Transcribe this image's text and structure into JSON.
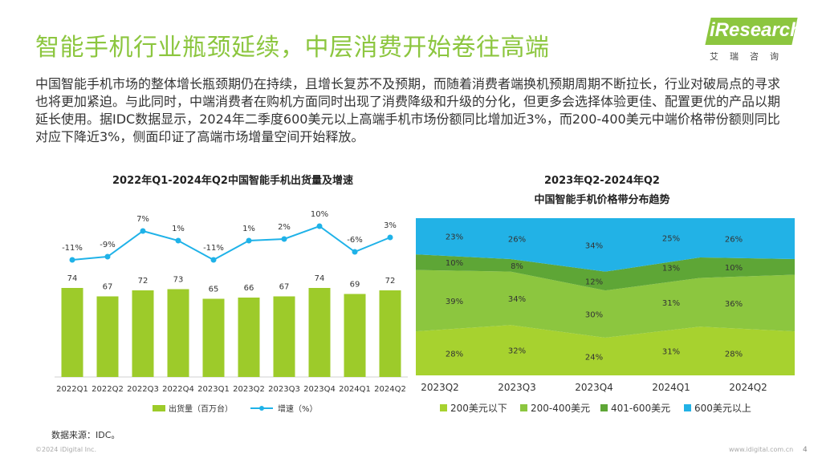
{
  "page": {
    "title": "智能手机行业瓶颈延续，中层消费开始卷往高端",
    "body": "中国智能手机市场的整体增长瓶颈期仍在持续，且增长复苏不及预期，而随着消费者端换机预期周期不断拉长，行业对破局点的寻求也将更加紧迫。与此同时，中端消费者在购机方面同时出现了消费降级和升级的分化，但更多会选择体验更佳、配置更优的产品以期延长使用。据IDC数据显示，2024年二季度600美元以上高端手机市场份额同比增加近3%，而200-400美元中端价格带份额则同比对应下降近3%，侧面印证了高端市场增量空间开始释放。",
    "source": "数据来源：IDC。",
    "footer_left": "©2024 iDigital Inc.",
    "footer_right": "www.idigital.com.cn",
    "page_number": "4"
  },
  "logo": {
    "text": "iResearch",
    "sub": "艾瑞咨询"
  },
  "colors": {
    "accent": "#8cc63f",
    "bar": "#9dcb2a",
    "line": "#1fb2e8",
    "under200": "#a7d22f",
    "r200_400": "#8cc63f",
    "r401_600": "#5ea636",
    "over600": "#22b2e6"
  },
  "chart_data": [
    {
      "type": "bar",
      "title": "2022年Q1-2024年Q2中国智能手机出货量及增速",
      "categories": [
        "2022Q1",
        "2022Q2",
        "2022Q3",
        "2022Q4",
        "2023Q1",
        "2023Q2",
        "2023Q3",
        "2023Q4",
        "2024Q1",
        "2024Q2"
      ],
      "series": [
        {
          "name": "出货量（百万台）",
          "type": "bar",
          "values": [
            74,
            67,
            72,
            73,
            65,
            66,
            67,
            74,
            69,
            72
          ],
          "labels": [
            "74",
            "67",
            "72",
            "73",
            "65",
            "66",
            "67",
            "74",
            "69",
            "72"
          ]
        },
        {
          "name": "增速（%）",
          "type": "line",
          "values": [
            -11,
            -9,
            7,
            1,
            -11,
            1,
            2,
            10,
            -6,
            3
          ],
          "labels": [
            "-11%",
            "-9%",
            "7%",
            "1%",
            "-11%",
            "1%",
            "2%",
            "10%",
            "-6%",
            "3%"
          ]
        }
      ],
      "ylim_bar": [
        0,
        160
      ],
      "ylim_line": [
        -20,
        20
      ],
      "legend": "bottom"
    },
    {
      "type": "area",
      "title": [
        "2023年Q2-2024年Q2",
        "中国智能手机价格带分布趋势"
      ],
      "categories": [
        "2023Q2",
        "2023Q3",
        "2023Q4",
        "2024Q1",
        "2024Q2"
      ],
      "series": [
        {
          "name": "200美元以下",
          "values": [
            28,
            32,
            24,
            31,
            28
          ],
          "labels": [
            "28%",
            "32%",
            "24%",
            "31%",
            "28%"
          ]
        },
        {
          "name": "200-400美元",
          "values": [
            39,
            34,
            30,
            31,
            36
          ],
          "labels": [
            "39%",
            "34%",
            "30%",
            "31%",
            "36%"
          ]
        },
        {
          "name": "401-600美元",
          "values": [
            10,
            8,
            12,
            13,
            10
          ],
          "labels": [
            "10%",
            "8%",
            "12%",
            "13%",
            "10%"
          ]
        },
        {
          "name": "600美元以上",
          "values": [
            23,
            26,
            34,
            25,
            26
          ],
          "labels": [
            "23%",
            "26%",
            "34%",
            "25%",
            "26%"
          ]
        }
      ],
      "ylim": [
        0,
        100
      ],
      "legend": "bottom"
    }
  ]
}
